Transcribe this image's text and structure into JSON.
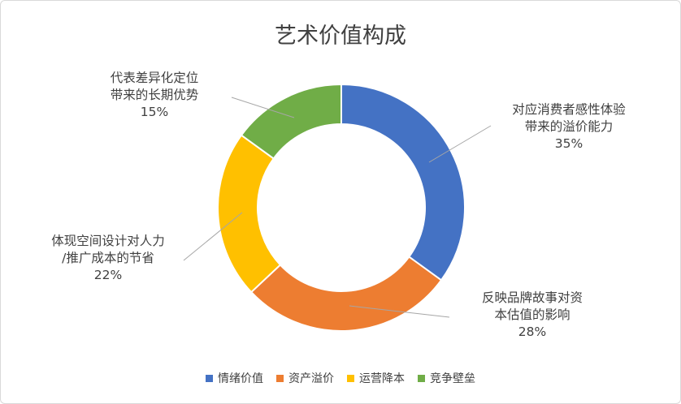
{
  "chart_data": {
    "type": "pie",
    "donut": true,
    "title": "艺术价值构成",
    "legend_position": "bottom",
    "categories": [
      "情绪价值",
      "资产溢价",
      "运营降本",
      "竞争壁垒"
    ],
    "values": [
      35,
      28,
      22,
      15
    ],
    "colors": [
      "#4472c4",
      "#ed7d31",
      "#ffc000",
      "#70ad47"
    ],
    "data_labels": [
      {
        "lines": [
          "对应消费者感性体验",
          "带来的溢价能力"
        ],
        "percent": "35%"
      },
      {
        "lines": [
          "反映品牌故事对资",
          "本估值的影响"
        ],
        "percent": "28%"
      },
      {
        "lines": [
          "体现空间设计对人力",
          "/推广成本的节省"
        ],
        "percent": "22%"
      },
      {
        "lines": [
          "代表差异化定位",
          "带来的长期优势"
        ],
        "percent": "15%"
      }
    ]
  }
}
